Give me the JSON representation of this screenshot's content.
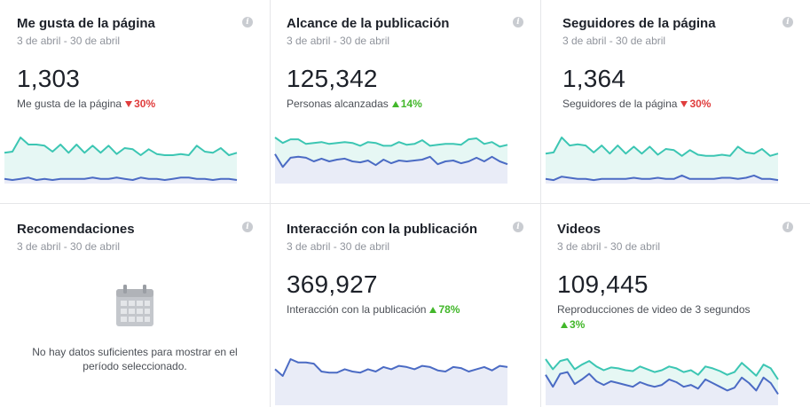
{
  "colors": {
    "teal": "#3cc6b3",
    "teal_fill": "#e6f7f4",
    "blue": "#4b6bc4",
    "blue_fill": "#e9ecf7",
    "down": "#e03d3d",
    "up": "#42b72a"
  },
  "cards": [
    {
      "title": "Me gusta de la página",
      "range": "3 de abril - 30 de abril",
      "value": "1,303",
      "sub": "Me gusta de la página",
      "delta": "30%",
      "direction": "down",
      "info_icon": "i",
      "teal": [
        26,
        27,
        39,
        33,
        33,
        32,
        27,
        33,
        26,
        33,
        26,
        32,
        26,
        32,
        25,
        30,
        29,
        24,
        29,
        25,
        24,
        24,
        25,
        24,
        32,
        27,
        26,
        30,
        24,
        26
      ],
      "blue": [
        4,
        3,
        4,
        5,
        3,
        4,
        3,
        4,
        4,
        4,
        4,
        5,
        4,
        4,
        5,
        4,
        3,
        5,
        4,
        4,
        3,
        4,
        5,
        5,
        4,
        4,
        3,
        4,
        4,
        3
      ]
    },
    {
      "title": "Alcance de la publicación",
      "range": "3 de abril - 30 de abril",
      "value": "125,342",
      "sub": "Personas alcanzadas",
      "delta": "14%",
      "direction": "up",
      "info_icon": "i",
      "teal": [
        50,
        44,
        48,
        48,
        43,
        44,
        45,
        43,
        44,
        45,
        44,
        41,
        45,
        44,
        41,
        41,
        45,
        42,
        43,
        47,
        41,
        42,
        43,
        43,
        42,
        48,
        49,
        43,
        45,
        40,
        42
      ],
      "blue": [
        32,
        18,
        28,
        29,
        28,
        24,
        27,
        24,
        26,
        27,
        24,
        23,
        25,
        20,
        26,
        22,
        25,
        24,
        25,
        26,
        29,
        21,
        24,
        25,
        22,
        24,
        28,
        24,
        29,
        24,
        21
      ]
    },
    {
      "title": "Seguidores de la página",
      "range": "3 de abril - 30 de abril",
      "value": "1,364",
      "sub": "Seguidores de la página",
      "delta": "30%",
      "direction": "down",
      "info_icon": "i",
      "teal": [
        26,
        27,
        40,
        33,
        34,
        33,
        27,
        33,
        26,
        33,
        26,
        32,
        26,
        32,
        25,
        30,
        29,
        24,
        29,
        25,
        24,
        24,
        25,
        24,
        32,
        27,
        26,
        30,
        24,
        26
      ],
      "blue": [
        4,
        3,
        6,
        5,
        4,
        4,
        3,
        4,
        4,
        4,
        4,
        5,
        4,
        4,
        5,
        4,
        4,
        7,
        4,
        4,
        4,
        4,
        5,
        5,
        4,
        5,
        7,
        4,
        4,
        3
      ]
    },
    {
      "title": "Recomendaciones",
      "range": "3 de abril - 30 de abril",
      "empty_message": "No hay datos suficientes para mostrar en el período seleccionado.",
      "info_icon": "i",
      "icon": "calendar-icon"
    },
    {
      "title": "Interacción con la publicación",
      "range": "3 de abril - 30 de abril",
      "value": "369,927",
      "sub": "Interacción con la publicación",
      "delta": "78%",
      "direction": "up",
      "info_icon": "i",
      "blue": [
        32,
        26,
        41,
        38,
        38,
        37,
        30,
        29,
        29,
        32,
        30,
        29,
        32,
        30,
        34,
        32,
        35,
        34,
        32,
        35,
        34,
        31,
        30,
        34,
        33,
        30,
        32,
        34,
        31,
        35,
        34
      ]
    },
    {
      "title": "Videos",
      "range": "3 de abril - 30 de abril",
      "value": "109,445",
      "sub": "Reproducciones de video de 3 segundos",
      "delta": "3%",
      "direction": "up",
      "info_icon": "i",
      "teal": [
        50,
        39,
        48,
        50,
        39,
        44,
        48,
        42,
        38,
        41,
        40,
        38,
        37,
        42,
        39,
        36,
        38,
        42,
        40,
        36,
        38,
        33,
        42,
        40,
        37,
        33,
        36,
        46,
        39,
        32,
        44,
        40,
        28
      ],
      "blue": [
        33,
        20,
        34,
        36,
        23,
        28,
        34,
        26,
        22,
        26,
        24,
        22,
        20,
        25,
        22,
        20,
        22,
        28,
        25,
        20,
        22,
        18,
        28,
        24,
        20,
        16,
        19,
        30,
        24,
        16,
        30,
        24,
        12
      ]
    }
  ]
}
